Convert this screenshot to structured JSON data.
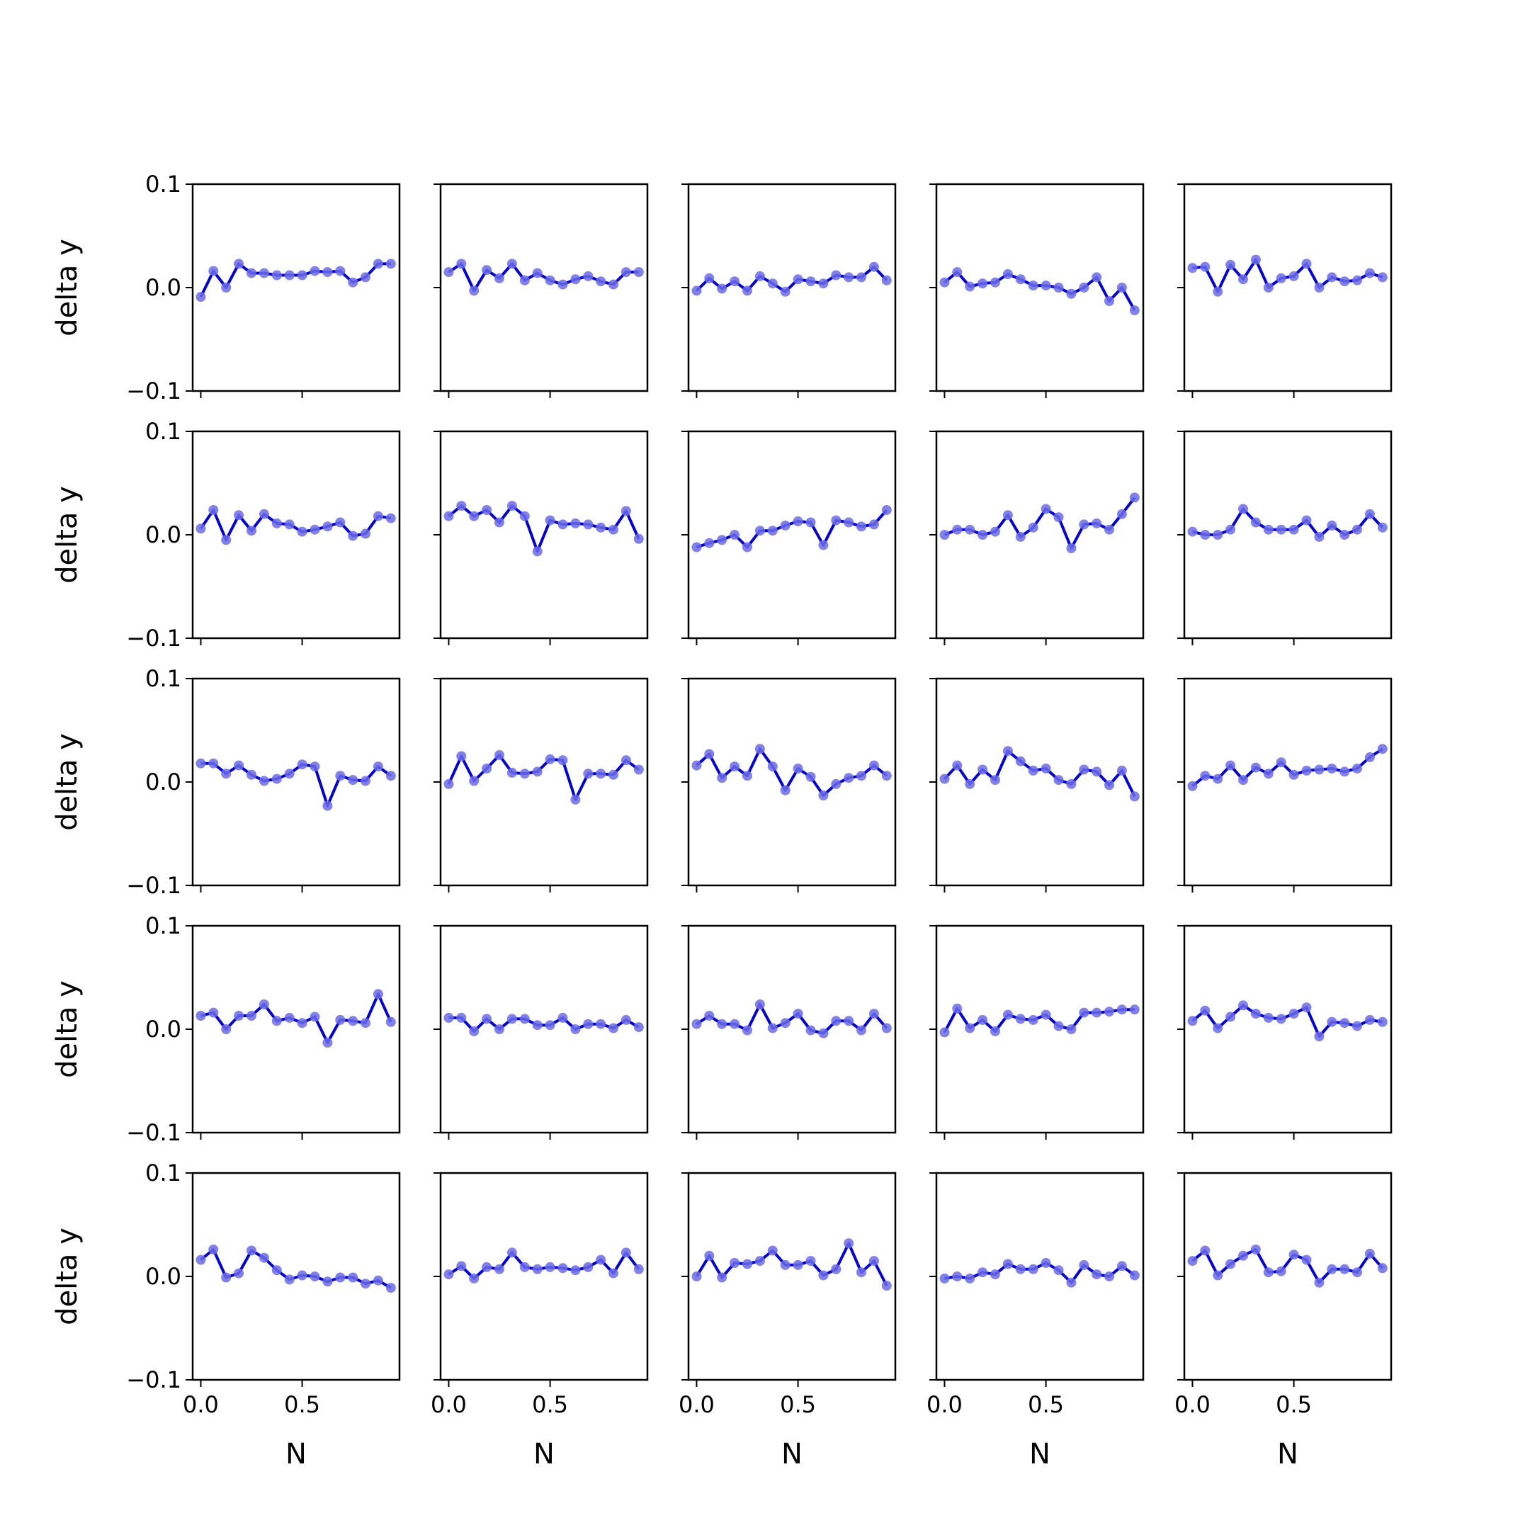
{
  "chart_data": {
    "type": "line",
    "layout": {
      "rows": 5,
      "cols": 5
    },
    "sharex": true,
    "sharey": true,
    "xlabel": "N",
    "ylabel": "delta y",
    "xlim": [
      -0.04,
      0.98
    ],
    "ylim": [
      -0.1,
      0.1
    ],
    "xticks": [
      0.0,
      0.5
    ],
    "xtick_labels": [
      "0.0",
      "0.5"
    ],
    "yticks": [
      -0.1,
      0.0,
      0.1
    ],
    "ytick_labels": [
      "−0.1",
      "0.0",
      "0.1"
    ],
    "grid": false,
    "line_color": "#0000dd",
    "marker_color": "#6b6be8",
    "x": [
      0.0,
      0.0625,
      0.125,
      0.1875,
      0.25,
      0.3125,
      0.375,
      0.4375,
      0.5,
      0.5625,
      0.625,
      0.6875,
      0.75,
      0.8125,
      0.875,
      0.9375
    ],
    "panels": [
      {
        "y": [
          -0.009,
          0.016,
          0.0,
          0.023,
          0.014,
          0.014,
          0.012,
          0.012,
          0.012,
          0.016,
          0.015,
          0.016,
          0.005,
          0.01,
          0.023,
          0.023
        ]
      },
      {
        "y": [
          0.015,
          0.023,
          -0.003,
          0.017,
          0.009,
          0.023,
          0.007,
          0.014,
          0.007,
          0.003,
          0.008,
          0.011,
          0.006,
          0.003,
          0.015,
          0.015
        ]
      },
      {
        "y": [
          -0.003,
          0.009,
          -0.001,
          0.006,
          -0.003,
          0.011,
          0.004,
          -0.004,
          0.008,
          0.006,
          0.004,
          0.012,
          0.01,
          0.01,
          0.02,
          0.007
        ]
      },
      {
        "y": [
          0.005,
          0.015,
          0.001,
          0.004,
          0.005,
          0.013,
          0.008,
          0.002,
          0.002,
          0.0,
          -0.006,
          0.0,
          0.01,
          -0.013,
          0.0,
          -0.022
        ]
      },
      {
        "y": [
          0.019,
          0.02,
          -0.004,
          0.022,
          0.008,
          0.027,
          0.0,
          0.009,
          0.011,
          0.023,
          0.0,
          0.01,
          0.006,
          0.007,
          0.014,
          0.01
        ]
      },
      {
        "y": [
          0.006,
          0.024,
          -0.005,
          0.019,
          0.004,
          0.02,
          0.011,
          0.01,
          0.003,
          0.005,
          0.008,
          0.012,
          -0.001,
          0.001,
          0.018,
          0.016
        ]
      },
      {
        "y": [
          0.018,
          0.028,
          0.018,
          0.024,
          0.012,
          0.028,
          0.018,
          -0.016,
          0.014,
          0.01,
          0.011,
          0.01,
          0.007,
          0.005,
          0.023,
          -0.004
        ]
      },
      {
        "y": [
          -0.012,
          -0.008,
          -0.005,
          0.0,
          -0.012,
          0.004,
          0.004,
          0.009,
          0.013,
          0.012,
          -0.01,
          0.014,
          0.012,
          0.008,
          0.01,
          0.024
        ]
      },
      {
        "y": [
          0.0,
          0.005,
          0.005,
          0.0,
          0.003,
          0.019,
          -0.002,
          0.007,
          0.025,
          0.017,
          -0.013,
          0.01,
          0.011,
          0.005,
          0.02,
          0.036
        ]
      },
      {
        "y": [
          0.003,
          0.0,
          0.0,
          0.005,
          0.025,
          0.012,
          0.005,
          0.005,
          0.005,
          0.014,
          -0.002,
          0.009,
          0.0,
          0.005,
          0.02,
          0.007
        ]
      },
      {
        "y": [
          0.018,
          0.018,
          0.008,
          0.016,
          0.007,
          0.001,
          0.003,
          0.008,
          0.017,
          0.015,
          -0.023,
          0.006,
          0.002,
          0.001,
          0.015,
          0.006
        ]
      },
      {
        "y": [
          -0.002,
          0.025,
          0.001,
          0.013,
          0.026,
          0.009,
          0.008,
          0.01,
          0.022,
          0.021,
          -0.017,
          0.008,
          0.008,
          0.007,
          0.021,
          0.012
        ]
      },
      {
        "y": [
          0.016,
          0.027,
          0.004,
          0.015,
          0.006,
          0.032,
          0.015,
          -0.008,
          0.013,
          0.005,
          -0.013,
          -0.002,
          0.004,
          0.006,
          0.016,
          0.006
        ]
      },
      {
        "y": [
          0.003,
          0.016,
          -0.002,
          0.012,
          0.002,
          0.03,
          0.02,
          0.011,
          0.013,
          0.002,
          -0.002,
          0.012,
          0.01,
          -0.003,
          0.011,
          -0.014
        ]
      },
      {
        "y": [
          -0.004,
          0.006,
          0.003,
          0.016,
          0.002,
          0.014,
          0.008,
          0.019,
          0.007,
          0.011,
          0.012,
          0.013,
          0.01,
          0.013,
          0.024,
          0.032
        ]
      },
      {
        "y": [
          0.013,
          0.016,
          0.0,
          0.013,
          0.013,
          0.024,
          0.008,
          0.011,
          0.006,
          0.012,
          -0.013,
          0.009,
          0.008,
          0.006,
          0.034,
          0.007
        ]
      },
      {
        "y": [
          0.011,
          0.011,
          -0.002,
          0.01,
          0.0,
          0.01,
          0.01,
          0.004,
          0.004,
          0.011,
          0.0,
          0.005,
          0.005,
          0.001,
          0.009,
          0.002
        ]
      },
      {
        "y": [
          0.005,
          0.013,
          0.005,
          0.005,
          -0.001,
          0.024,
          0.001,
          0.006,
          0.015,
          -0.001,
          -0.004,
          0.008,
          0.008,
          -0.001,
          0.015,
          0.001
        ]
      },
      {
        "y": [
          -0.003,
          0.02,
          0.001,
          0.009,
          -0.002,
          0.014,
          0.01,
          0.009,
          0.014,
          0.003,
          0.0,
          0.016,
          0.016,
          0.017,
          0.019,
          0.019
        ]
      },
      {
        "y": [
          0.008,
          0.018,
          0.001,
          0.012,
          0.023,
          0.015,
          0.011,
          0.01,
          0.015,
          0.021,
          -0.007,
          0.007,
          0.006,
          0.003,
          0.009,
          0.007
        ]
      },
      {
        "y": [
          0.016,
          0.026,
          -0.001,
          0.003,
          0.025,
          0.018,
          0.006,
          -0.003,
          0.001,
          0.0,
          -0.005,
          -0.001,
          -0.001,
          -0.007,
          -0.004,
          -0.011
        ]
      },
      {
        "y": [
          0.002,
          0.01,
          -0.002,
          0.009,
          0.007,
          0.023,
          0.009,
          0.007,
          0.009,
          0.008,
          0.006,
          0.009,
          0.016,
          0.003,
          0.023,
          0.007
        ]
      },
      {
        "y": [
          0.0,
          0.02,
          -0.001,
          0.013,
          0.012,
          0.015,
          0.025,
          0.011,
          0.011,
          0.015,
          0.001,
          0.007,
          0.032,
          0.004,
          0.015,
          -0.009
        ]
      },
      {
        "y": [
          -0.002,
          0.0,
          -0.002,
          0.004,
          0.002,
          0.012,
          0.007,
          0.007,
          0.013,
          0.006,
          -0.006,
          0.011,
          0.002,
          0.0,
          0.01,
          0.001
        ]
      },
      {
        "y": [
          0.015,
          0.025,
          0.001,
          0.012,
          0.02,
          0.026,
          0.004,
          0.005,
          0.021,
          0.016,
          -0.006,
          0.007,
          0.007,
          0.004,
          0.022,
          0.008
        ]
      }
    ]
  }
}
